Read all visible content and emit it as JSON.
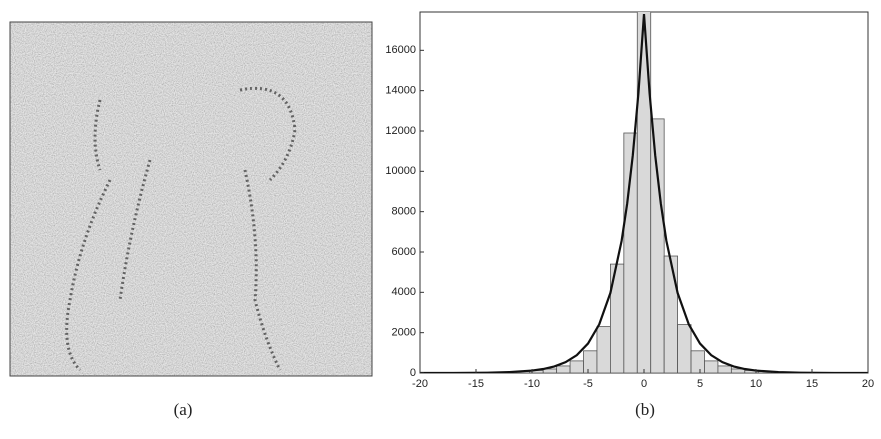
{
  "image_caption": "(a)",
  "chart_data": {
    "type": "histogram",
    "caption": "(b)",
    "bins": [
      -13.8,
      -12.6,
      -11.4,
      -10.2,
      -9.0,
      -7.8,
      -6.6,
      -5.4,
      -4.2,
      -3.0,
      -1.8,
      -0.6,
      0.6,
      1.8,
      3.0,
      4.2,
      5.4,
      6.6,
      7.8,
      9.0,
      10.2,
      11.4,
      12.6,
      13.8
    ],
    "values": [
      30,
      50,
      80,
      130,
      200,
      350,
      600,
      1100,
      2300,
      5400,
      11900,
      18000,
      12600,
      5800,
      2400,
      1100,
      600,
      350,
      200,
      130,
      80,
      50,
      30
    ],
    "color": "#d9d9d9",
    "fit": {
      "type": "line",
      "color": "#111111",
      "x": [
        -20,
        -17,
        -14,
        -12,
        -10,
        -9,
        -8,
        -7,
        -6,
        -5,
        -4,
        -3,
        -2,
        -1.5,
        -1,
        -0.5,
        0,
        0.5,
        1,
        1.5,
        2,
        3,
        4,
        5,
        6,
        7,
        8,
        9,
        10,
        12,
        14,
        17,
        20
      ],
      "values": [
        1,
        4,
        16,
        44,
        120,
        198,
        326,
        537,
        886,
        1461,
        2409,
        3972,
        6548,
        8408,
        10796,
        13862,
        17800,
        13862,
        10796,
        8408,
        6548,
        3972,
        2409,
        1461,
        886,
        537,
        326,
        198,
        120,
        44,
        16,
        4,
        1
      ]
    },
    "xlim": [
      -20,
      20
    ],
    "ylim": [
      0,
      17900
    ],
    "xticks": [
      -20,
      -15,
      -10,
      -5,
      0,
      5,
      10,
      15,
      20
    ],
    "yticks": [
      0,
      2000,
      4000,
      6000,
      8000,
      10000,
      12000,
      14000,
      16000
    ]
  }
}
